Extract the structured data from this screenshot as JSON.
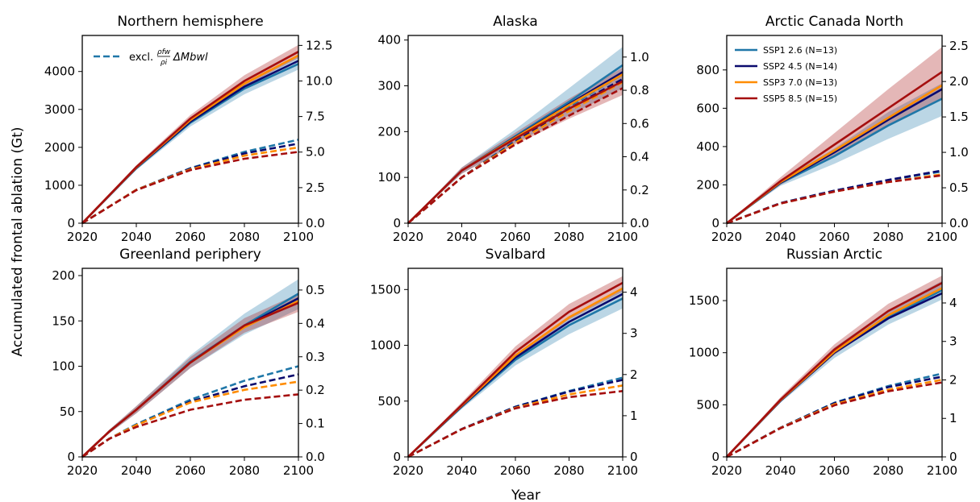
{
  "figure": {
    "ylabel": "Accumulated frontal ablation (Gt)",
    "xlabel": "Year",
    "legend_dashed_label_prefix": "excl.",
    "legend_dashed_fraction_num": "ρfw",
    "legend_dashed_fraction_den": "ρi",
    "legend_dashed_label_suffix": "ΔMbwl"
  },
  "chart_data": [
    {
      "type": "line",
      "title": "Northern hemisphere",
      "xlim": [
        2020,
        2100
      ],
      "xticks": [
        2020,
        2040,
        2060,
        2080,
        2100
      ],
      "ylim": [
        0,
        4950
      ],
      "yticks": [
        0,
        1000,
        2000,
        3000,
        4000
      ],
      "y2lim": [
        0,
        13.2
      ],
      "y2ticks": [
        "0.0",
        "2.5",
        "5.0",
        "7.5",
        "10.0",
        "12.5"
      ],
      "series": [
        {
          "name": "SSP1 2.6 (N=13)",
          "color": "#1f77a8",
          "x": [
            2020,
            2040,
            2060,
            2080,
            2100
          ],
          "y": [
            0,
            1450,
            2650,
            3550,
            4200
          ],
          "lower": [
            0,
            1400,
            2550,
            3400,
            4050
          ],
          "upper": [
            0,
            1500,
            2750,
            3700,
            4400
          ],
          "dashed": [
            0,
            880,
            1450,
            1880,
            2200
          ]
        },
        {
          "name": "SSP2 4.5 (N=14)",
          "color": "#0a0a6e",
          "x": [
            2020,
            2040,
            2060,
            2080,
            2100
          ],
          "y": [
            0,
            1460,
            2680,
            3600,
            4280
          ],
          "dashed": [
            0,
            880,
            1440,
            1840,
            2100
          ]
        },
        {
          "name": "SSP3 7.0 (N=13)",
          "color": "#ff8c00",
          "x": [
            2020,
            2040,
            2060,
            2080,
            2100
          ],
          "y": [
            0,
            1470,
            2720,
            3680,
            4420
          ],
          "dashed": [
            0,
            880,
            1420,
            1780,
            2000
          ]
        },
        {
          "name": "SSP5 8.5 (N=15)",
          "color": "#a50f0f",
          "x": [
            2020,
            2040,
            2060,
            2080,
            2100
          ],
          "y": [
            0,
            1480,
            2760,
            3750,
            4520
          ],
          "lower": [
            0,
            1440,
            2680,
            3620,
            4350
          ],
          "upper": [
            0,
            1530,
            2850,
            3900,
            4700
          ],
          "dashed": [
            0,
            870,
            1400,
            1700,
            1880
          ]
        }
      ]
    },
    {
      "type": "line",
      "title": "Alaska",
      "xlim": [
        2020,
        2100
      ],
      "xticks": [
        2020,
        2040,
        2060,
        2080,
        2100
      ],
      "ylim": [
        0,
        410
      ],
      "yticks": [
        0,
        100,
        200,
        300,
        400
      ],
      "y2lim": [
        0,
        1.13
      ],
      "y2ticks": [
        "0.0",
        "0.2",
        "0.4",
        "0.6",
        "0.8",
        "1.0"
      ],
      "series": [
        {
          "name": "SSP1 2.6 (N=13)",
          "color": "#1f77a8",
          "x": [
            2020,
            2040,
            2060,
            2080,
            2100
          ],
          "y": [
            0,
            115,
            190,
            265,
            345
          ],
          "lower": [
            0,
            108,
            175,
            235,
            295
          ],
          "upper": [
            0,
            122,
            205,
            295,
            385
          ],
          "dashed": [
            0,
            100,
            180,
            255,
            325
          ]
        },
        {
          "name": "SSP2 4.5 (N=14)",
          "color": "#0a0a6e",
          "x": [
            2020,
            2040,
            2060,
            2080,
            2100
          ],
          "y": [
            0,
            115,
            188,
            260,
            330
          ],
          "dashed": [
            0,
            100,
            178,
            250,
            315
          ]
        },
        {
          "name": "SSP3 7.0 (N=13)",
          "color": "#ff8c00",
          "x": [
            2020,
            2040,
            2060,
            2080,
            2100
          ],
          "y": [
            0,
            115,
            187,
            258,
            325
          ],
          "dashed": [
            0,
            100,
            176,
            245,
            308
          ]
        },
        {
          "name": "SSP5 8.5 (N=15)",
          "color": "#a50f0f",
          "x": [
            2020,
            2040,
            2060,
            2080,
            2100
          ],
          "y": [
            0,
            115,
            185,
            250,
            310
          ],
          "lower": [
            0,
            108,
            172,
            228,
            280
          ],
          "upper": [
            0,
            122,
            198,
            272,
            340
          ],
          "dashed": [
            0,
            100,
            172,
            235,
            295
          ]
        }
      ]
    },
    {
      "type": "line",
      "title": "Arctic Canada North",
      "xlim": [
        2020,
        2100
      ],
      "xticks": [
        2020,
        2040,
        2060,
        2080,
        2100
      ],
      "ylim": [
        0,
        980
      ],
      "yticks": [
        0,
        200,
        400,
        600,
        800
      ],
      "y2lim": [
        0,
        2.65
      ],
      "y2ticks": [
        "0.0",
        "0.5",
        "1.0",
        "1.5",
        "2.0",
        "2.5"
      ],
      "legend_position": "top-left",
      "series": [
        {
          "name": "SSP1 2.6 (N=13)",
          "color": "#1f77a8",
          "x": [
            2020,
            2040,
            2060,
            2080,
            2100
          ],
          "y": [
            0,
            210,
            350,
            510,
            650
          ],
          "lower": [
            0,
            195,
            310,
            440,
            560
          ],
          "upper": [
            0,
            225,
            390,
            580,
            730
          ],
          "dashed": [
            0,
            105,
            170,
            225,
            270
          ]
        },
        {
          "name": "SSP2 4.5 (N=14)",
          "color": "#0a0a6e",
          "x": [
            2020,
            2040,
            2060,
            2080,
            2100
          ],
          "y": [
            0,
            212,
            370,
            540,
            700
          ],
          "dashed": [
            0,
            105,
            170,
            226,
            275
          ]
        },
        {
          "name": "SSP3 7.0 (N=13)",
          "color": "#ff8c00",
          "x": [
            2020,
            2040,
            2060,
            2080,
            2100
          ],
          "y": [
            0,
            215,
            380,
            550,
            720
          ],
          "dashed": [
            0,
            103,
            165,
            215,
            255
          ]
        },
        {
          "name": "SSP5 8.5 (N=15)",
          "color": "#a50f0f",
          "x": [
            2020,
            2040,
            2060,
            2080,
            2100
          ],
          "y": [
            0,
            220,
            410,
            600,
            790
          ],
          "lower": [
            0,
            200,
            350,
            510,
            650
          ],
          "upper": [
            0,
            240,
            470,
            700,
            920
          ],
          "dashed": [
            0,
            103,
            165,
            215,
            250
          ]
        }
      ]
    },
    {
      "type": "line",
      "title": "Greenland periphery",
      "xlim": [
        2020,
        2100
      ],
      "xticks": [
        2020,
        2040,
        2060,
        2080,
        2100
      ],
      "ylim": [
        0,
        208
      ],
      "yticks": [
        0,
        50,
        100,
        150,
        200
      ],
      "y2lim": [
        0,
        0.565
      ],
      "y2ticks": [
        "0.0",
        "0.1",
        "0.2",
        "0.3",
        "0.4",
        "0.5"
      ],
      "series": [
        {
          "name": "SSP1 2.6 (N=13)",
          "color": "#1f77a8",
          "x": [
            2020,
            2030,
            2040,
            2060,
            2080,
            2100
          ],
          "y": [
            0,
            28,
            52,
            105,
            145,
            180
          ],
          "lower": [
            0,
            26,
            48,
            98,
            135,
            163
          ],
          "upper": [
            0,
            30,
            56,
            112,
            158,
            196
          ],
          "dashed": [
            0,
            20,
            36,
            63,
            84,
            100
          ]
        },
        {
          "name": "SSP2 4.5 (N=14)",
          "color": "#0a0a6e",
          "x": [
            2020,
            2030,
            2040,
            2060,
            2080,
            2100
          ],
          "y": [
            0,
            28,
            52,
            104,
            144,
            175
          ],
          "dashed": [
            0,
            20,
            35,
            61,
            78,
            91
          ]
        },
        {
          "name": "SSP3 7.0 (N=13)",
          "color": "#ff8c00",
          "x": [
            2020,
            2030,
            2040,
            2060,
            2080,
            2100
          ],
          "y": [
            0,
            28,
            52,
            104,
            143,
            172
          ],
          "dashed": [
            0,
            20,
            35,
            60,
            74,
            83
          ]
        },
        {
          "name": "SSP5 8.5 (N=15)",
          "color": "#a50f0f",
          "x": [
            2020,
            2030,
            2040,
            2060,
            2080,
            2100
          ],
          "y": [
            0,
            28,
            52,
            104,
            145,
            170
          ],
          "lower": [
            0,
            26,
            48,
            98,
            137,
            160
          ],
          "upper": [
            0,
            30,
            56,
            110,
            153,
            180
          ],
          "dashed": [
            0,
            20,
            33,
            52,
            63,
            69
          ]
        }
      ]
    },
    {
      "type": "line",
      "title": "Svalbard",
      "xlim": [
        2020,
        2100
      ],
      "xticks": [
        2020,
        2040,
        2060,
        2080,
        2100
      ],
      "ylim": [
        0,
        1690
      ],
      "yticks": [
        0,
        500,
        1000,
        1500
      ],
      "y2lim": [
        0,
        4.58
      ],
      "y2ticks": [
        "0",
        "1",
        "2",
        "3",
        "4"
      ],
      "series": [
        {
          "name": "SSP1 2.6 (N=13)",
          "color": "#1f77a8",
          "x": [
            2020,
            2040,
            2060,
            2080,
            2100
          ],
          "y": [
            0,
            450,
            870,
            1180,
            1420
          ],
          "lower": [
            0,
            430,
            820,
            1100,
            1330
          ],
          "upper": [
            0,
            470,
            920,
            1260,
            1510
          ],
          "dashed": [
            0,
            250,
            450,
            590,
            710
          ]
        },
        {
          "name": "SSP2 4.5 (N=14)",
          "color": "#0a0a6e",
          "x": [
            2020,
            2040,
            2060,
            2080,
            2100
          ],
          "y": [
            0,
            455,
            890,
            1210,
            1460
          ],
          "dashed": [
            0,
            250,
            448,
            585,
            690
          ]
        },
        {
          "name": "SSP3 7.0 (N=13)",
          "color": "#ff8c00",
          "x": [
            2020,
            2040,
            2060,
            2080,
            2100
          ],
          "y": [
            0,
            460,
            910,
            1250,
            1510
          ],
          "dashed": [
            0,
            248,
            440,
            560,
            640
          ]
        },
        {
          "name": "SSP5 8.5 (N=15)",
          "color": "#a50f0f",
          "x": [
            2020,
            2040,
            2060,
            2080,
            2100
          ],
          "y": [
            0,
            465,
            940,
            1300,
            1560
          ],
          "lower": [
            0,
            445,
            890,
            1230,
            1480
          ],
          "upper": [
            0,
            490,
            990,
            1370,
            1620
          ],
          "dashed": [
            0,
            248,
            435,
            535,
            590
          ]
        }
      ]
    },
    {
      "type": "line",
      "title": "Russian Arctic",
      "xlim": [
        2020,
        2100
      ],
      "xticks": [
        2020,
        2040,
        2060,
        2080,
        2100
      ],
      "ylim": [
        0,
        1810
      ],
      "yticks": [
        0,
        500,
        1000,
        1500
      ],
      "y2lim": [
        0,
        4.9
      ],
      "y2ticks": [
        "0",
        "1",
        "2",
        "3",
        "4"
      ],
      "series": [
        {
          "name": "SSP1 2.6 (N=13)",
          "color": "#1f77a8",
          "x": [
            2020,
            2040,
            2060,
            2080,
            2100
          ],
          "y": [
            0,
            540,
            1000,
            1340,
            1600
          ],
          "lower": [
            0,
            520,
            950,
            1270,
            1510
          ],
          "upper": [
            0,
            560,
            1050,
            1410,
            1690
          ],
          "dashed": [
            0,
            280,
            520,
            680,
            800
          ]
        },
        {
          "name": "SSP2 4.5 (N=14)",
          "color": "#0a0a6e",
          "x": [
            2020,
            2040,
            2060,
            2080,
            2100
          ],
          "y": [
            0,
            540,
            1000,
            1330,
            1570
          ],
          "dashed": [
            0,
            280,
            515,
            670,
            770
          ]
        },
        {
          "name": "SSP3 7.0 (N=13)",
          "color": "#ff8c00",
          "x": [
            2020,
            2040,
            2060,
            2080,
            2100
          ],
          "y": [
            0,
            545,
            1010,
            1360,
            1620
          ],
          "dashed": [
            0,
            278,
            505,
            645,
            740
          ]
        },
        {
          "name": "SSP5 8.5 (N=15)",
          "color": "#a50f0f",
          "x": [
            2020,
            2040,
            2060,
            2080,
            2100
          ],
          "y": [
            0,
            550,
            1030,
            1400,
            1670
          ],
          "lower": [
            0,
            530,
            980,
            1330,
            1590
          ],
          "upper": [
            0,
            575,
            1080,
            1470,
            1740
          ],
          "dashed": [
            0,
            275,
            495,
            630,
            715
          ]
        }
      ]
    }
  ]
}
